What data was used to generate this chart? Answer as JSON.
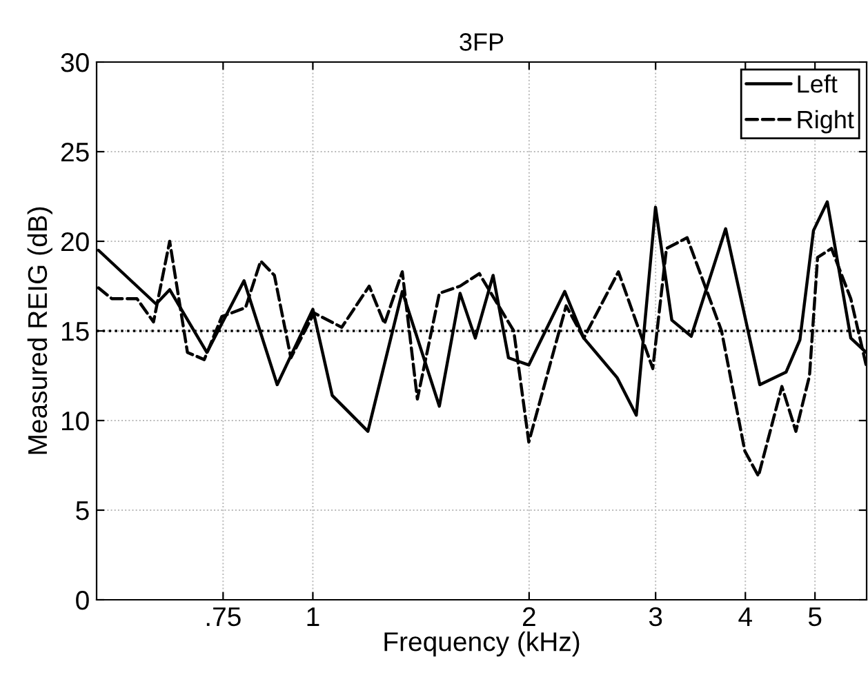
{
  "chart_data": {
    "type": "line",
    "title": "3FP",
    "xlabel": "Frequency (kHz)",
    "ylabel": "Measured REIG (dB)",
    "log": "x",
    "xlim": [
      0.5,
      5.9
    ],
    "xticks": [
      {
        "value": 0.75,
        "label": ".75"
      },
      1,
      2,
      3,
      4,
      5
    ],
    "ylim": [
      0,
      30
    ],
    "yticks": [
      0,
      5,
      10,
      15,
      20,
      25,
      30
    ],
    "grid": true,
    "legend": "top right",
    "ref_lines": [
      {
        "axis": "y",
        "value": 15,
        "color": "#000000",
        "line_style": "dotted"
      }
    ],
    "series": [
      {
        "name": "Left",
        "color": "#000000",
        "line_style": "solid",
        "x": [
          0.503,
          0.605,
          0.632,
          0.712,
          0.802,
          0.892,
          1.0,
          1.064,
          1.193,
          1.332,
          1.5,
          1.603,
          1.683,
          1.782,
          1.872,
          1.998,
          2.242,
          2.383,
          2.651,
          2.82,
          2.999,
          3.16,
          3.363,
          3.755,
          4.19,
          4.557,
          4.764,
          4.976,
          5.201,
          5.608,
          5.89
        ],
        "values": [
          19.5,
          16.5,
          17.3,
          13.8,
          17.8,
          12.0,
          16.2,
          11.4,
          9.4,
          17.2,
          10.8,
          17.1,
          14.6,
          18.1,
          13.5,
          13.1,
          17.2,
          14.6,
          12.4,
          10.3,
          21.9,
          15.6,
          14.7,
          20.7,
          12.0,
          12.7,
          14.5,
          20.6,
          22.2,
          14.6,
          13.8
        ]
      },
      {
        "name": "Right",
        "color": "#000000",
        "line_style": "dashed",
        "x": [
          0.503,
          0.525,
          0.569,
          0.6,
          0.632,
          0.669,
          0.706,
          0.747,
          0.806,
          0.846,
          0.884,
          0.932,
          1.004,
          1.097,
          1.198,
          1.258,
          1.332,
          1.398,
          1.5,
          1.603,
          1.705,
          1.728,
          1.904,
          1.998,
          2.252,
          2.383,
          2.663,
          2.973,
          3.106,
          3.319,
          3.706,
          3.993,
          4.171,
          4.497,
          4.703,
          4.913,
          5.042,
          5.272,
          5.608,
          5.89
        ],
        "values": [
          17.4,
          16.8,
          16.8,
          15.5,
          20.0,
          13.8,
          13.4,
          15.8,
          16.3,
          18.9,
          18.1,
          13.5,
          16.0,
          15.2,
          17.5,
          15.4,
          18.3,
          11.2,
          17.1,
          17.5,
          18.2,
          17.8,
          15.0,
          8.8,
          16.4,
          14.6,
          18.3,
          12.9,
          19.6,
          20.2,
          15.0,
          8.3,
          6.9,
          11.9,
          9.4,
          12.5,
          19.1,
          19.6,
          16.8,
          13.1
        ]
      }
    ]
  }
}
